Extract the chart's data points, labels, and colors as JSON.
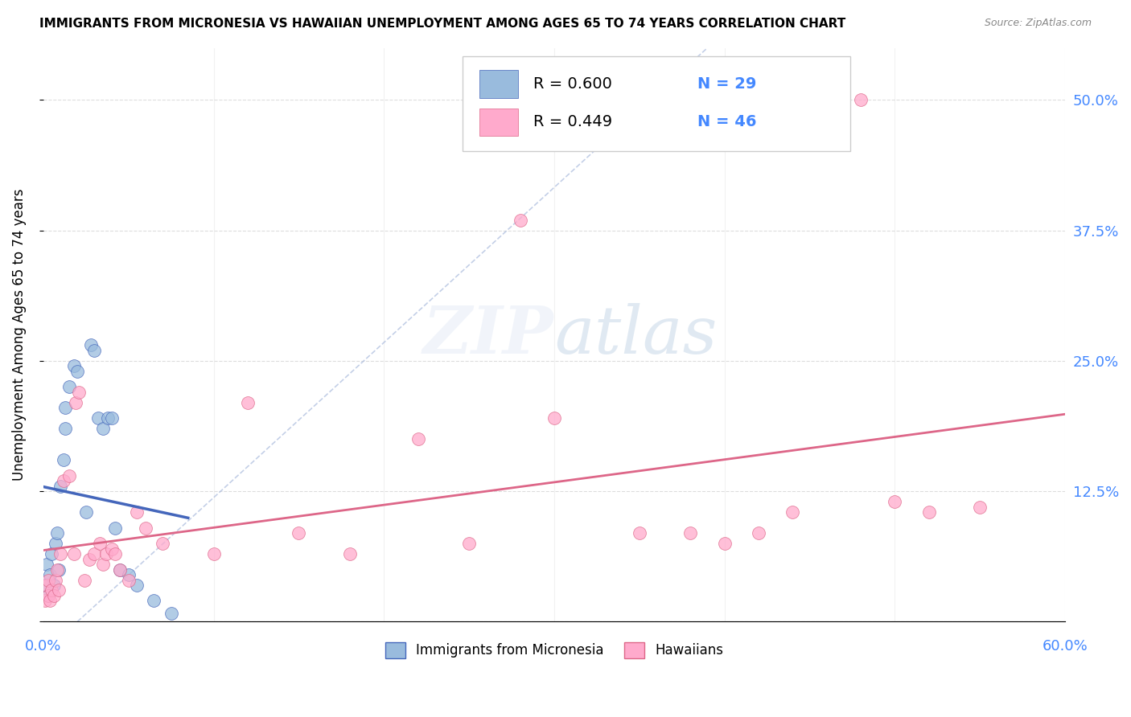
{
  "title": "IMMIGRANTS FROM MICRONESIA VS HAWAIIAN UNEMPLOYMENT AMONG AGES 65 TO 74 YEARS CORRELATION CHART",
  "source": "Source: ZipAtlas.com",
  "ylabel": "Unemployment Among Ages 65 to 74 years",
  "legend_label1": "Immigrants from Micronesia",
  "legend_label2": "Hawaiians",
  "R1": "0.600",
  "N1": "29",
  "R2": "0.449",
  "N2": "46",
  "color_blue": "#99BBDD",
  "color_pink": "#FFAACC",
  "color_blue_line": "#4466BB",
  "color_pink_line": "#DD6688",
  "color_blue_text": "#4488FF",
  "color_dash": "#AABBDD",
  "blue_scatter_x": [
    0.001,
    0.002,
    0.003,
    0.004,
    0.005,
    0.006,
    0.007,
    0.008,
    0.009,
    0.01,
    0.012,
    0.013,
    0.013,
    0.015,
    0.018,
    0.02,
    0.025,
    0.028,
    0.03,
    0.032,
    0.035,
    0.038,
    0.04,
    0.042,
    0.045,
    0.05,
    0.055,
    0.065,
    0.075
  ],
  "blue_scatter_y": [
    0.035,
    0.055,
    0.025,
    0.045,
    0.065,
    0.035,
    0.075,
    0.085,
    0.05,
    0.13,
    0.155,
    0.205,
    0.185,
    0.225,
    0.245,
    0.24,
    0.105,
    0.265,
    0.26,
    0.195,
    0.185,
    0.195,
    0.195,
    0.09,
    0.05,
    0.045,
    0.035,
    0.02,
    0.008
  ],
  "pink_scatter_x": [
    0.001,
    0.002,
    0.003,
    0.003,
    0.004,
    0.005,
    0.006,
    0.007,
    0.008,
    0.009,
    0.01,
    0.012,
    0.015,
    0.018,
    0.019,
    0.021,
    0.024,
    0.027,
    0.03,
    0.033,
    0.035,
    0.037,
    0.04,
    0.042,
    0.045,
    0.05,
    0.055,
    0.06,
    0.07,
    0.1,
    0.12,
    0.15,
    0.18,
    0.22,
    0.25,
    0.28,
    0.3,
    0.35,
    0.38,
    0.4,
    0.42,
    0.44,
    0.48,
    0.5,
    0.52,
    0.55
  ],
  "pink_scatter_y": [
    0.02,
    0.035,
    0.04,
    0.025,
    0.02,
    0.03,
    0.025,
    0.04,
    0.05,
    0.03,
    0.065,
    0.135,
    0.14,
    0.065,
    0.21,
    0.22,
    0.04,
    0.06,
    0.065,
    0.075,
    0.055,
    0.065,
    0.07,
    0.065,
    0.05,
    0.04,
    0.105,
    0.09,
    0.075,
    0.065,
    0.21,
    0.085,
    0.065,
    0.175,
    0.075,
    0.385,
    0.195,
    0.085,
    0.085,
    0.075,
    0.085,
    0.105,
    0.5,
    0.115,
    0.105,
    0.11
  ],
  "xlim": [
    0.0,
    0.6
  ],
  "ylim": [
    0.0,
    0.55
  ],
  "xticks": [
    0.0,
    0.1,
    0.2,
    0.3,
    0.4,
    0.5,
    0.6
  ],
  "yticks_right": [
    0.0,
    0.125,
    0.25,
    0.375,
    0.5
  ]
}
